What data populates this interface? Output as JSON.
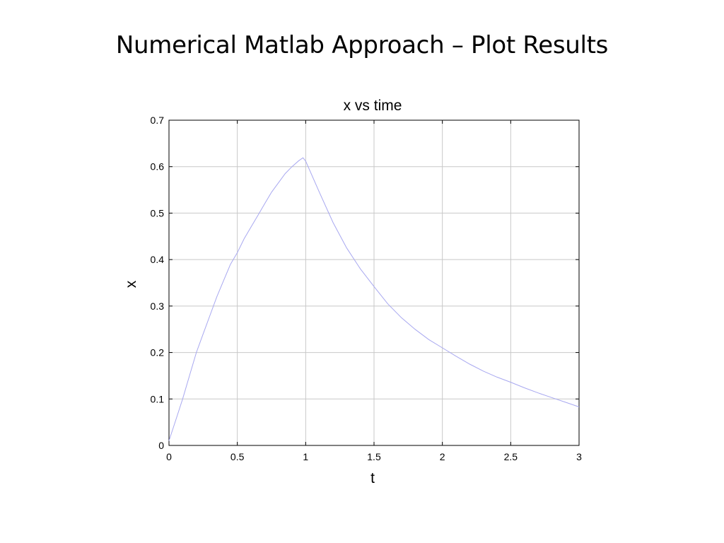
{
  "slide": {
    "title": "Numerical Matlab Approach – Plot Results"
  },
  "chart_data": {
    "type": "line",
    "title": "x vs time",
    "xlabel": "t",
    "ylabel": "x",
    "xlim": [
      0,
      3
    ],
    "ylim": [
      0,
      0.7
    ],
    "xticks": [
      0,
      0.5,
      1,
      1.5,
      2,
      2.5,
      3
    ],
    "xtick_labels": [
      "0",
      "0.5",
      "1",
      "1.5",
      "2",
      "2.5",
      "3"
    ],
    "yticks": [
      0,
      0.1,
      0.2,
      0.3,
      0.4,
      0.5,
      0.6,
      0.7
    ],
    "ytick_labels": [
      "0",
      "0.1",
      "0.2",
      "0.3",
      "0.4",
      "0.5",
      "0.6",
      "0.7"
    ],
    "grid": true,
    "line_color": "#a8a8f0",
    "series": [
      {
        "x": [
          0,
          0.05,
          0.1,
          0.15,
          0.2,
          0.25,
          0.3,
          0.35,
          0.4,
          0.45,
          0.5,
          0.55,
          0.6,
          0.65,
          0.7,
          0.75,
          0.8,
          0.85,
          0.9,
          0.95,
          0.98,
          1.0,
          1.1,
          1.2,
          1.3,
          1.4,
          1.5,
          1.6,
          1.7,
          1.8,
          1.9,
          2.0,
          2.1,
          2.2,
          2.3,
          2.4,
          2.5,
          2.6,
          2.7,
          2.8,
          2.9,
          3.0
        ],
        "y": [
          0.01,
          0.055,
          0.1,
          0.15,
          0.2,
          0.24,
          0.28,
          0.32,
          0.355,
          0.39,
          0.415,
          0.445,
          0.47,
          0.495,
          0.52,
          0.545,
          0.565,
          0.585,
          0.6,
          0.613,
          0.619,
          0.612,
          0.545,
          0.48,
          0.425,
          0.38,
          0.342,
          0.305,
          0.275,
          0.25,
          0.228,
          0.21,
          0.192,
          0.175,
          0.16,
          0.147,
          0.136,
          0.124,
          0.113,
          0.103,
          0.093,
          0.083
        ]
      }
    ]
  }
}
